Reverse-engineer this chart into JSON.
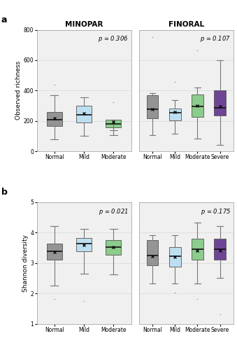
{
  "title_left": "MINOPAR",
  "title_right": "FINORAL",
  "ylabel_a": "Observed richness",
  "ylabel_b": "Shannon diversity",
  "pval_a_left": "p = 0.306",
  "pval_a_right": "p = 0.107",
  "pval_b_left": "p = 0.021",
  "pval_b_right": "p = 0.175",
  "colors": {
    "Normal": "#878787",
    "Mild": "#b8ddf0",
    "Moderate": "#7ec87e",
    "Severe": "#5c2d8a"
  },
  "box_edge_color": "#555555",
  "whisker_color": "#777777",
  "cap_color": "#777777",
  "median_color": "#111111",
  "mean_marker_color": "#111111",
  "flier_color": "#888888",
  "background_color": "#ffffff",
  "panel_bg": "#f0f0f0",
  "grid_color": "#d8d8d8",
  "minopar_richness": {
    "categories": [
      "Normal",
      "Mild",
      "Moderate"
    ],
    "q1": [
      168,
      190,
      158
    ],
    "median": [
      208,
      242,
      178
    ],
    "q3": [
      258,
      300,
      208
    ],
    "mean": [
      215,
      248,
      195
    ],
    "whislo": [
      80,
      100,
      108
    ],
    "whishi": [
      368,
      355,
      138
    ],
    "fliers_high": [
      438,
      0,
      325
    ],
    "fliers_low": [
      0,
      0,
      0
    ]
  },
  "finoral_richness": {
    "categories": [
      "Normal",
      "Mild",
      "Moderate",
      "Severe"
    ],
    "q1": [
      218,
      202,
      225,
      235
    ],
    "median": [
      275,
      255,
      295,
      288
    ],
    "q3": [
      368,
      282,
      372,
      402
    ],
    "mean": [
      278,
      258,
      300,
      295
    ],
    "whislo": [
      105,
      115,
      85,
      40
    ],
    "whishi": [
      382,
      338,
      418,
      598
    ],
    "fliers_high": [
      752,
      458,
      662,
      0
    ],
    "fliers_low": [
      0,
      0,
      0,
      0
    ]
  },
  "minopar_shannon": {
    "categories": [
      "Normal",
      "Mild",
      "Moderate"
    ],
    "q1": [
      3.12,
      3.38,
      3.28
    ],
    "median": [
      3.38,
      3.65,
      3.52
    ],
    "q3": [
      3.65,
      3.82,
      3.75
    ],
    "mean": [
      3.36,
      3.6,
      3.52
    ],
    "whislo": [
      2.25,
      2.65,
      2.62
    ],
    "whishi": [
      4.22,
      4.12,
      4.12
    ],
    "fliers_high": [
      0,
      0,
      0
    ],
    "fliers_low": [
      1.82,
      1.75,
      0
    ]
  },
  "finoral_shannon": {
    "categories": [
      "Normal",
      "Mild",
      "Moderate",
      "Severe"
    ],
    "q1": [
      2.92,
      2.88,
      3.12,
      3.12
    ],
    "median": [
      3.25,
      3.22,
      3.45,
      3.45
    ],
    "q3": [
      3.75,
      3.52,
      3.8,
      3.8
    ],
    "mean": [
      3.22,
      3.2,
      3.42,
      3.42
    ],
    "whislo": [
      2.32,
      2.32,
      2.32,
      2.52
    ],
    "whishi": [
      3.92,
      3.92,
      4.32,
      4.22
    ],
    "fliers_high": [
      0,
      0,
      0,
      0
    ],
    "fliers_low": [
      0,
      2.02,
      1.82,
      1.32
    ]
  },
  "ylim_richness": [
    0,
    800
  ],
  "yticks_richness": [
    0,
    200,
    400,
    600,
    800
  ],
  "ylim_shannon": [
    1,
    5
  ],
  "yticks_shannon": [
    1,
    2,
    3,
    4,
    5
  ]
}
